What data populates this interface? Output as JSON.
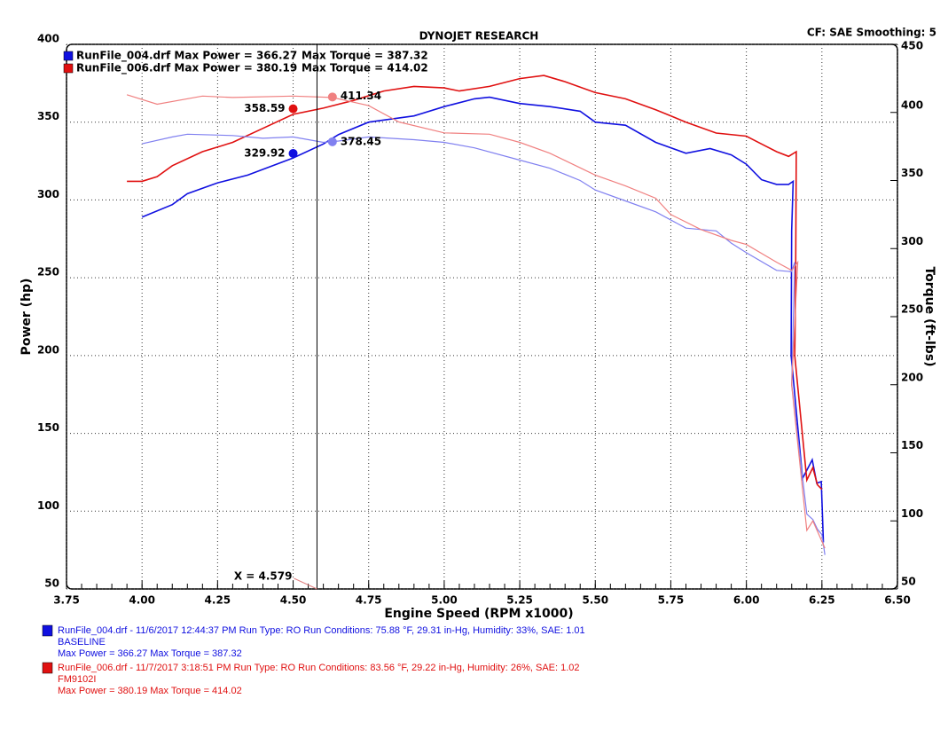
{
  "chart_data": {
    "type": "line",
    "title": "DYNOJET RESEARCH",
    "corner_note": "CF: SAE  Smoothing: 5",
    "x_label": "Engine Speed (RPM x1000)",
    "y_label": "Power (hp)",
    "y2_label": "Torque (ft-lbs)",
    "xlim": [
      3.75,
      6.5
    ],
    "ylim": [
      50,
      400
    ],
    "y2lim": [
      50,
      450
    ],
    "grid": true,
    "xticks": [
      {
        "value": 3.75,
        "label": "3.75"
      },
      {
        "value": 4,
        "label": "4.00"
      },
      {
        "value": 4.25,
        "label": "4.25"
      },
      {
        "value": 4.5,
        "label": "4.50"
      },
      {
        "value": 4.75,
        "label": "4.75"
      },
      {
        "value": 5,
        "label": "5.00"
      },
      {
        "value": 5.25,
        "label": "5.25"
      },
      {
        "value": 5.5,
        "label": "5.50"
      },
      {
        "value": 5.75,
        "label": "5.75"
      },
      {
        "value": 6,
        "label": "6.00"
      },
      {
        "value": 6.25,
        "label": "6.25"
      },
      {
        "value": 6.5,
        "label": "6.50"
      }
    ],
    "yticks": [
      50,
      100,
      150,
      200,
      250,
      300,
      350,
      400
    ],
    "y2ticks": [
      50,
      100,
      150,
      200,
      250,
      300,
      350,
      400,
      450
    ],
    "series": [
      {
        "name": "RunFile_004.drf Max Power = 366.27",
        "color": "#1010e0",
        "axis": "y",
        "x": [
          4.0,
          4.1,
          4.15,
          4.25,
          4.35,
          4.5,
          4.6,
          4.65,
          4.75,
          4.9,
          5.0,
          5.1,
          5.15,
          5.25,
          5.35,
          5.45,
          5.5,
          5.6,
          5.7,
          5.8,
          5.88,
          5.95,
          6.0,
          6.05,
          6.1,
          6.14,
          6.155,
          6.15,
          6.148,
          6.186,
          6.218,
          6.233,
          6.248,
          6.255
        ],
        "values": [
          289,
          297,
          304,
          311,
          316,
          327,
          336,
          342,
          350,
          354,
          360,
          365,
          366,
          362,
          360,
          357,
          350,
          348,
          337,
          330,
          333,
          329,
          323,
          313,
          310,
          310,
          312,
          280,
          200,
          121,
          133,
          118,
          119,
          80
        ]
      },
      {
        "name": "RunFile_006.drf Max Power = 380.19",
        "color": "#e01010",
        "axis": "y",
        "x": [
          3.95,
          4.0,
          4.05,
          4.1,
          4.2,
          4.3,
          4.4,
          4.5,
          4.6,
          4.7,
          4.8,
          4.9,
          5.0,
          5.05,
          5.15,
          5.25,
          5.33,
          5.4,
          5.5,
          5.6,
          5.7,
          5.8,
          5.9,
          6.0,
          6.05,
          6.1,
          6.14,
          6.165,
          6.163,
          6.16,
          6.2,
          6.22,
          6.235,
          6.25
        ],
        "values": [
          312,
          312,
          315,
          322,
          331,
          337,
          346,
          355,
          359,
          364,
          370,
          373,
          372,
          370,
          373,
          378,
          380,
          376,
          369,
          365,
          358,
          350,
          343,
          341,
          336,
          331,
          328,
          331,
          250,
          200,
          120,
          128,
          117,
          114
        ]
      },
      {
        "name": "RunFile_004.drf Max Torque = 387.32",
        "color": "#8080f0",
        "axis": "y2",
        "x": [
          4.0,
          4.1,
          4.15,
          4.3,
          4.4,
          4.5,
          4.6,
          4.65,
          4.75,
          4.9,
          5.0,
          5.1,
          5.25,
          5.35,
          5.45,
          5.5,
          5.6,
          5.7,
          5.8,
          5.9,
          5.95,
          6.0,
          6.1,
          6.15,
          6.16,
          6.15,
          6.2,
          6.22,
          6.235,
          6.25,
          6.26
        ],
        "values": [
          377,
          382,
          384,
          383,
          381,
          382,
          378,
          379,
          382,
          380,
          378,
          374,
          365,
          359,
          350,
          343,
          335,
          327,
          315,
          313,
          304,
          297,
          284,
          283,
          290,
          200,
          105,
          101,
          94,
          90,
          75
        ]
      },
      {
        "name": "RunFile_006.drf Max Torque = 414.02",
        "color": "#f08080",
        "axis": "y2",
        "x": [
          3.95,
          4.05,
          4.2,
          4.3,
          4.5,
          4.63,
          4.75,
          4.85,
          5.0,
          5.15,
          5.25,
          5.35,
          5.5,
          5.6,
          5.7,
          5.75,
          5.85,
          5.95,
          6.0,
          6.1,
          6.15,
          6.17,
          6.15,
          6.2,
          6.22,
          6.24,
          6.26
        ],
        "values": [
          413,
          406,
          412,
          411,
          412,
          411,
          405,
          393,
          385,
          384,
          378,
          370,
          354,
          346,
          337,
          325,
          314,
          306,
          303,
          290,
          284,
          290,
          200,
          93,
          100,
          90,
          80
        ]
      }
    ],
    "markers": [
      {
        "x": 4.5,
        "value": 358.59,
        "color": "#e01010",
        "axis": "y"
      },
      {
        "x": 4.63,
        "value": 411.34,
        "color": "#f08080",
        "axis": "y2"
      },
      {
        "x": 4.5,
        "value": 329.92,
        "color": "#1010e0",
        "axis": "y"
      },
      {
        "x": 4.63,
        "value": 378.45,
        "color": "#8080f0",
        "axis": "y2"
      }
    ],
    "cursor_x": 4.579,
    "cursor_label": "X = 4.579",
    "legend": [
      {
        "power": "RunFile_004.drf Max Power = 366.27",
        "torque": "Max Torque = 387.32",
        "color": "#1010e0"
      },
      {
        "power": "RunFile_006.drf Max Power = 380.19",
        "torque": "Max Torque = 414.02",
        "color": "#e01010"
      }
    ],
    "runs": [
      {
        "info": "RunFile_004.drf - 11/6/2017 12:44:37 PM  Run Type: RO  Run Conditions: 75.88 °F, 29.31 in-Hg,  Humidity:  33%, SAE: 1.01",
        "note": "BASELINE",
        "max": "Max Power = 366.27  Max Torque = 387.32",
        "color": "#1010e0"
      },
      {
        "info": "RunFile_006.drf - 11/7/2017 3:18:51 PM  Run Type: RO  Run Conditions: 83.56 °F, 29.22 in-Hg,  Humidity:  26%, SAE: 1.02",
        "note": "FM9102I",
        "max": "Max Power = 380.19  Max Torque = 414.02",
        "color": "#e01010"
      }
    ]
  }
}
